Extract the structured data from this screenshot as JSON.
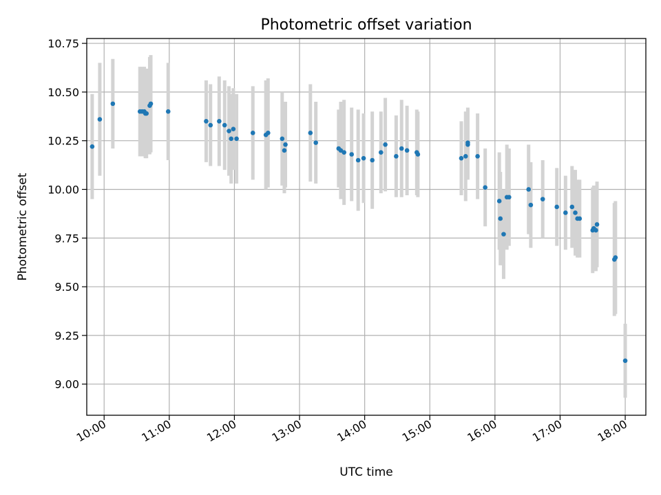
{
  "chart_data": {
    "type": "scatter",
    "title": "Photometric offset variation",
    "xlabel": "UTC time",
    "ylabel": "Photometric offset",
    "xlim": [
      "09:44",
      "18:19"
    ],
    "ylim": [
      8.84,
      10.775
    ],
    "grid": true,
    "x_ticks": [
      "10:00",
      "11:00",
      "12:00",
      "13:00",
      "14:00",
      "15:00",
      "16:00",
      "17:00",
      "18:00"
    ],
    "y_ticks": [
      "9.00",
      "9.25",
      "9.50",
      "9.75",
      "10.00",
      "10.25",
      "10.50",
      "10.75"
    ],
    "marker_color": "#1f77b4",
    "errorbar_color": "#d3d3d3",
    "series": [
      {
        "x": [
          "09:49",
          "09:56",
          "10:08",
          "10:33",
          "10:35",
          "10:37",
          "10:38",
          "10:39",
          "10:42",
          "10:43",
          "10:59",
          "11:34",
          "11:38",
          "11:46",
          "11:51",
          "11:55",
          "11:57",
          "11:59",
          "12:02",
          "12:17",
          "12:29",
          "12:31",
          "12:44",
          "12:46",
          "12:47",
          "13:10",
          "13:15",
          "13:36",
          "13:38",
          "13:41",
          "13:48",
          "13:54",
          "13:59",
          "14:07",
          "14:15",
          "14:19",
          "14:29",
          "14:34",
          "14:39",
          "14:48",
          "14:49",
          "15:29",
          "15:33",
          "15:35",
          "15:35",
          "15:44",
          "15:51",
          "16:04",
          "16:05",
          "16:08",
          "16:11",
          "16:13",
          "16:31",
          "16:33",
          "16:44",
          "16:57",
          "17:05",
          "17:11",
          "17:14",
          "17:16",
          "17:18",
          "17:30",
          "17:31",
          "17:33",
          "17:34",
          "17:50",
          "17:51",
          "18:00"
        ],
        "y": [
          10.22,
          10.36,
          10.44,
          10.4,
          10.4,
          10.4,
          10.39,
          10.39,
          10.43,
          10.44,
          10.4,
          10.35,
          10.33,
          10.35,
          10.33,
          10.3,
          10.26,
          10.31,
          10.26,
          10.29,
          10.28,
          10.29,
          10.26,
          10.2,
          10.23,
          10.29,
          10.24,
          10.21,
          10.2,
          10.19,
          10.18,
          10.15,
          10.16,
          10.15,
          10.19,
          10.23,
          10.17,
          10.21,
          10.2,
          10.19,
          10.18,
          10.16,
          10.17,
          10.23,
          10.24,
          10.17,
          10.01,
          9.94,
          9.85,
          9.77,
          9.96,
          9.96,
          10.0,
          9.92,
          9.95,
          9.91,
          9.88,
          9.91,
          9.88,
          9.85,
          9.85,
          9.79,
          9.8,
          9.79,
          9.82,
          9.64,
          9.65,
          9.12
        ],
        "yerr": [
          0.27,
          0.29,
          0.23,
          0.23,
          0.23,
          0.23,
          0.23,
          0.23,
          0.25,
          0.25,
          0.25,
          0.21,
          0.21,
          0.23,
          0.23,
          0.23,
          0.23,
          0.21,
          0.23,
          0.24,
          0.28,
          0.28,
          0.24,
          0.22,
          0.22,
          0.25,
          0.21,
          0.2,
          0.25,
          0.27,
          0.24,
          0.26,
          0.23,
          0.25,
          0.21,
          0.24,
          0.21,
          0.25,
          0.23,
          0.22,
          0.22,
          0.19,
          0.23,
          0.18,
          0.18,
          0.22,
          0.2,
          0.25,
          0.24,
          0.23,
          0.27,
          0.25,
          0.23,
          0.22,
          0.2,
          0.2,
          0.19,
          0.21,
          0.22,
          0.2,
          0.2,
          0.22,
          0.22,
          0.21,
          0.22,
          0.29,
          0.29,
          0.19
        ]
      }
    ]
  }
}
